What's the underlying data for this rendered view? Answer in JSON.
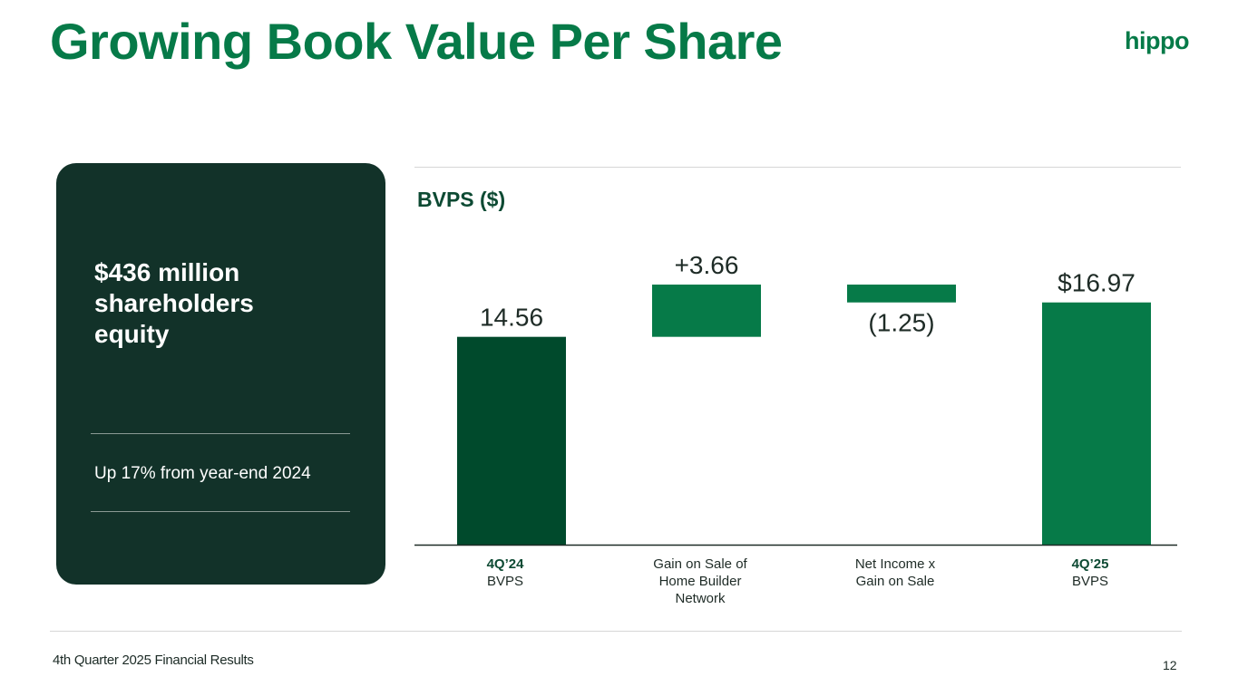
{
  "slide": {
    "title": "Growing Book Value Per Share",
    "logo_text": "hippo",
    "brand_color": "#067a48",
    "dark_color": "#123229"
  },
  "card": {
    "headline": "$436 million shareholders equity",
    "subtext": "Up 17% from year-end 2024"
  },
  "footer": {
    "text": "4th Quarter 2025 Financial Results",
    "page_number": "12"
  },
  "chart_data": {
    "type": "waterfall",
    "title": "BVPS ($)",
    "categories": [
      {
        "bold": "4Q’24",
        "lines": [
          "BVPS"
        ]
      },
      {
        "bold": "",
        "lines": [
          "Gain on Sale of",
          "Home Builder",
          "Network"
        ]
      },
      {
        "bold": "",
        "lines": [
          "Net Income x",
          "Gain on Sale"
        ]
      },
      {
        "bold": "4Q’25",
        "lines": [
          "BVPS"
        ]
      }
    ],
    "bars": [
      {
        "kind": "total",
        "value": 14.56,
        "label": "14.56",
        "color": "#004a2c"
      },
      {
        "kind": "delta",
        "value": 3.66,
        "label": "+3.66",
        "color": "#067a48"
      },
      {
        "kind": "delta",
        "value": -1.25,
        "label": "(1.25)",
        "color": "#067a48"
      },
      {
        "kind": "total",
        "value": 16.97,
        "label": "$16.97",
        "color": "#067a48"
      }
    ],
    "ylim": [
      0,
      19
    ],
    "grid": false,
    "legend": "none"
  }
}
